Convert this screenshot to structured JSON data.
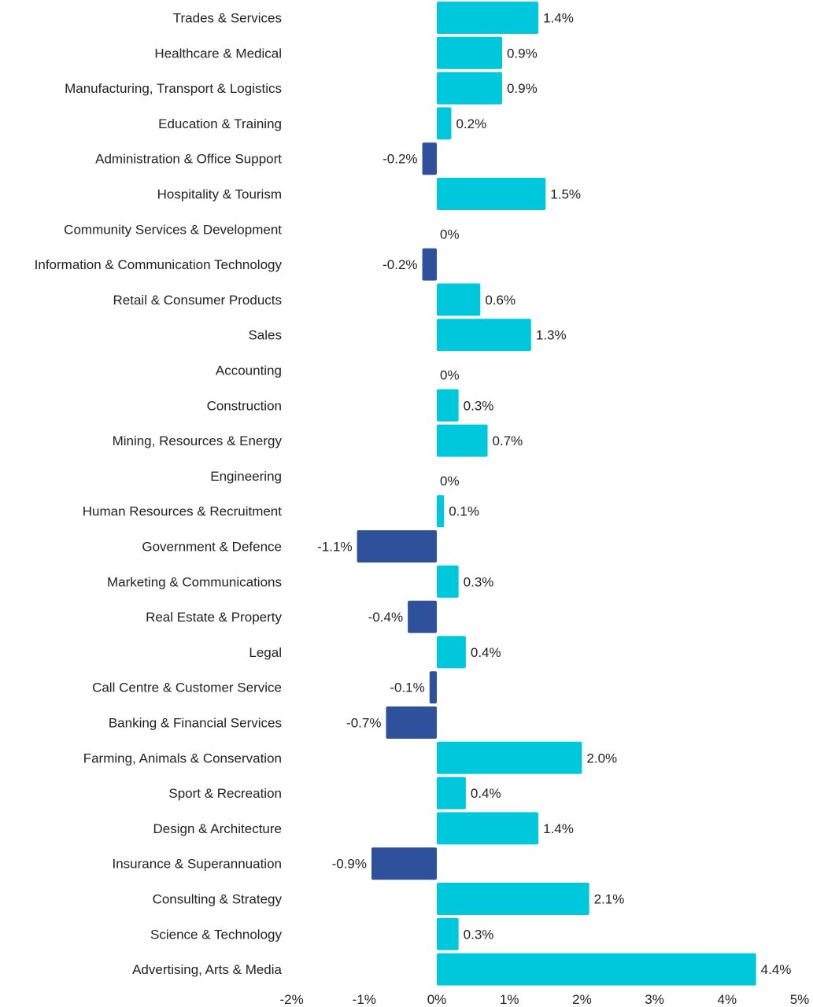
{
  "chart_data": {
    "type": "bar",
    "orientation": "horizontal",
    "title": "",
    "xlabel": "",
    "ylabel": "",
    "xlim": [
      -2,
      5
    ],
    "x_ticks": [
      -2,
      -1,
      0,
      1,
      2,
      3,
      4,
      5
    ],
    "x_tick_labels": [
      "-2%",
      "-1%",
      "0%",
      "1%",
      "2%",
      "3%",
      "4%",
      "5%"
    ],
    "grid": false,
    "legend": "none",
    "colors": {
      "positive": "#00c8dc",
      "negative": "#2f519c"
    },
    "categories": [
      "Trades & Services",
      "Healthcare & Medical",
      "Manufacturing, Transport & Logistics",
      "Education & Training",
      "Administration & Office Support",
      "Hospitality & Tourism",
      "Community Services & Development",
      "Information & Communication Technology",
      "Retail & Consumer Products",
      "Sales",
      "Accounting",
      "Construction",
      "Mining, Resources & Energy",
      "Engineering",
      "Human Resources & Recruitment",
      "Government & Defence",
      "Marketing & Communications",
      "Real Estate & Property",
      "Legal",
      "Call Centre & Customer Service",
      "Banking & Financial Services",
      "Farming, Animals & Conservation",
      "Sport & Recreation",
      "Design & Architecture",
      "Insurance & Superannuation",
      "Consulting & Strategy",
      "Science & Technology",
      "Advertising, Arts & Media"
    ],
    "values": [
      1.4,
      0.9,
      0.9,
      0.2,
      -0.2,
      1.5,
      0,
      -0.2,
      0.6,
      1.3,
      0,
      0.3,
      0.7,
      0,
      0.1,
      -1.1,
      0.3,
      -0.4,
      0.4,
      -0.1,
      -0.7,
      2.0,
      0.4,
      1.4,
      -0.9,
      2.1,
      0.3,
      4.4
    ],
    "value_labels": [
      "1.4%",
      "0.9%",
      "0.9%",
      "0.2%",
      "-0.2%",
      "1.5%",
      "0%",
      "-0.2%",
      "0.6%",
      "1.3%",
      "0%",
      "0.3%",
      "0.7%",
      "0%",
      "0.1%",
      "-1.1%",
      "0.3%",
      "-0.4%",
      "0.4%",
      "-0.1%",
      "-0.7%",
      "2.0%",
      "0.4%",
      "1.4%",
      "-0.9%",
      "2.1%",
      "0.3%",
      "4.4%"
    ]
  }
}
